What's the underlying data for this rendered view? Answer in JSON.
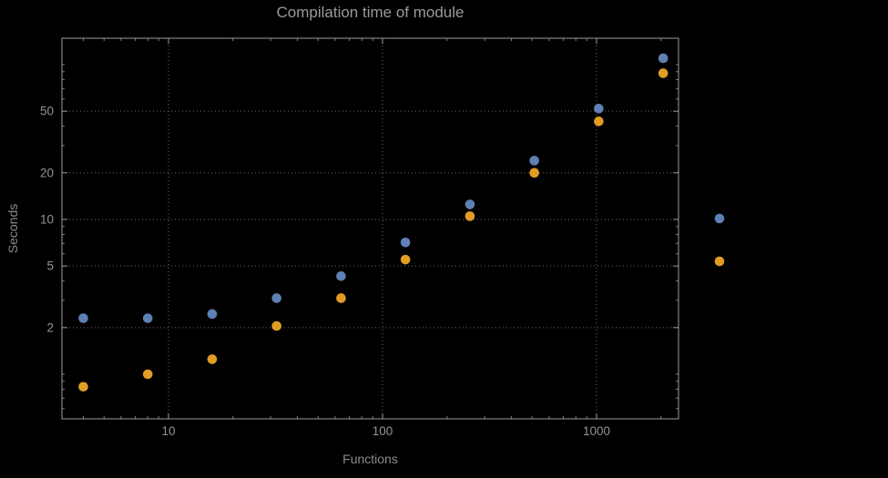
{
  "colors": {
    "background": "#000000",
    "frame": "#9c9c9c",
    "grid": "#6b6b6b",
    "text": "#949494",
    "series_blue": "#5E81B5",
    "series_orange": "#E19C24"
  },
  "chart_data": {
    "type": "scatter",
    "title": "Compilation time of module",
    "xlabel": "Functions",
    "ylabel": "Seconds",
    "x_scale": "log",
    "y_scale": "log",
    "grid": true,
    "grid_style": "dotted",
    "x_ticks": [
      10,
      100,
      1000
    ],
    "x_tick_labels": [
      "10",
      "100",
      "1000"
    ],
    "y_ticks": [
      2,
      5,
      10,
      20,
      50
    ],
    "y_tick_labels": [
      "2",
      "5",
      "10",
      "20",
      "50"
    ],
    "x_range": [
      3.2,
      2400
    ],
    "y_range": [
      0.52,
      148
    ],
    "x": [
      4,
      8,
      16,
      32,
      64,
      128,
      256,
      512,
      1024,
      2048
    ],
    "series": [
      {
        "name": "series-blue",
        "color": "#5E81B5",
        "values": [
          2.3,
          2.3,
          2.45,
          3.1,
          4.3,
          7.1,
          12.5,
          24,
          52,
          110
        ]
      },
      {
        "name": "series-orange",
        "color": "#E19C24",
        "values": [
          0.83,
          1.0,
          1.25,
          2.05,
          3.1,
          5.5,
          10.5,
          20,
          43,
          88
        ]
      }
    ],
    "legend": {
      "position": "right-outside",
      "entries": [
        {
          "name": "legend-marker-blue",
          "color": "#5E81B5"
        },
        {
          "name": "legend-marker-orange",
          "color": "#E19C24"
        }
      ]
    }
  }
}
